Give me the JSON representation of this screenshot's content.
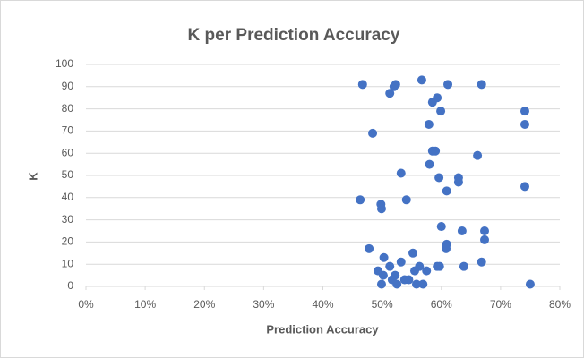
{
  "chart_data": {
    "type": "scatter",
    "title": "K per Prediction Accuracy",
    "x_label": "Prediction Accuracy",
    "y_label": "K",
    "color": "#4472c4",
    "grid": true,
    "xlim": [
      0,
      80
    ],
    "xticks": [
      {
        "value": 0,
        "label": "0%"
      },
      {
        "value": 10,
        "label": "10%"
      },
      {
        "value": 20,
        "label": "20%"
      },
      {
        "value": 30,
        "label": "30%"
      },
      {
        "value": 40,
        "label": "40%"
      },
      {
        "value": 50,
        "label": "50%"
      },
      {
        "value": 60,
        "label": "60%"
      },
      {
        "value": 70,
        "label": "70%"
      },
      {
        "value": 80,
        "label": "80%"
      }
    ],
    "ylim": [
      0,
      100
    ],
    "yticks": [
      0,
      10,
      20,
      30,
      40,
      50,
      60,
      70,
      80,
      90,
      100
    ],
    "x": [
      46.7,
      56.7,
      52.0,
      52.3,
      51.3,
      61.1,
      66.8,
      59.3,
      58.5,
      59.9,
      57.9,
      48.4,
      74.1,
      74.1,
      58.5,
      59.0,
      66.1,
      58.0,
      53.2,
      59.6,
      62.9,
      62.9,
      74.1,
      60.9,
      46.3,
      54.1,
      49.8,
      49.9,
      60.0,
      63.5,
      67.3,
      67.3,
      60.9,
      60.8,
      47.8,
      55.2,
      50.3,
      66.8,
      53.2,
      51.3,
      56.3,
      59.7,
      59.3,
      63.8,
      49.3,
      55.5,
      57.5,
      52.2,
      50.2,
      51.7,
      53.8,
      54.5,
      49.9,
      52.5,
      55.8,
      56.9,
      75.0
    ],
    "values": [
      91,
      93,
      90,
      91,
      87,
      91,
      91,
      85,
      83,
      79,
      73,
      69,
      79,
      73,
      61,
      61,
      59,
      55,
      51,
      49,
      49,
      47,
      45,
      43,
      39,
      39,
      37,
      35,
      27,
      25,
      25,
      21,
      19,
      17,
      17,
      15,
      13,
      11,
      11,
      9,
      9,
      9,
      9,
      9,
      7,
      7,
      7,
      5,
      5,
      3,
      3,
      3,
      1,
      1,
      1,
      1,
      1
    ]
  }
}
